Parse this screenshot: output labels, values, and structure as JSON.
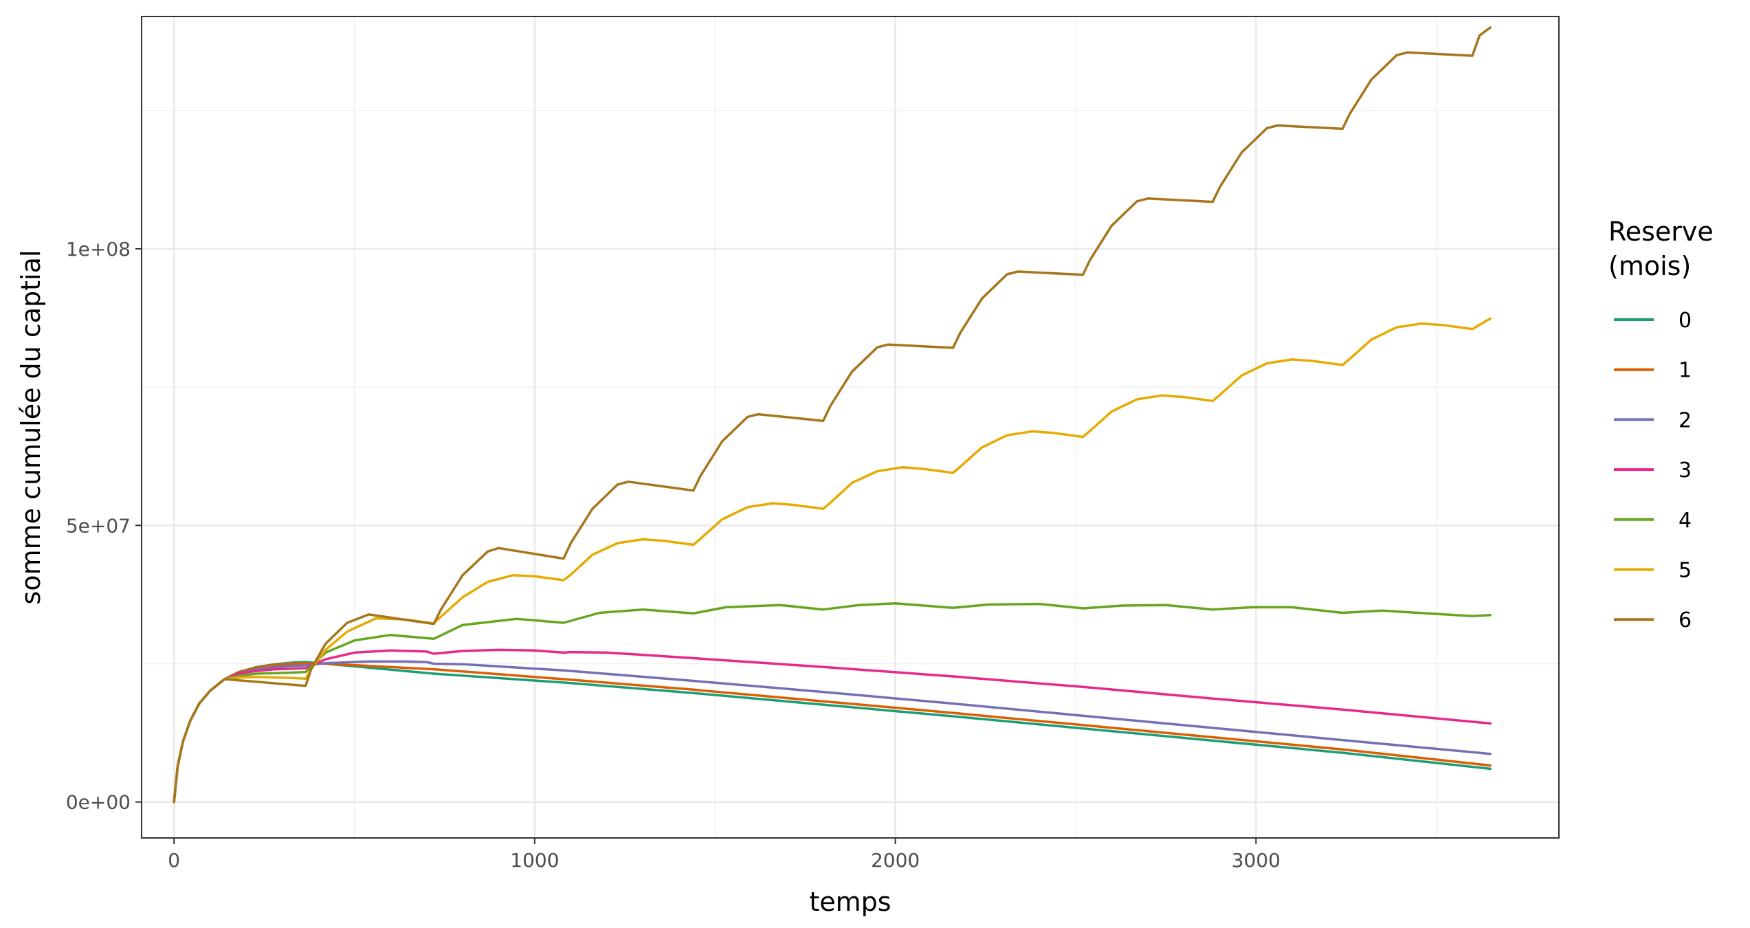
{
  "chart_data": {
    "type": "line",
    "title": "",
    "xlabel": "temps",
    "ylabel": "somme cumulée du captial",
    "xlim": [
      -90,
      3840
    ],
    "ylim": [
      -6500000,
      142000000
    ],
    "x_ticks": [
      0,
      1000,
      2000,
      3000
    ],
    "x_tick_labels": [
      "0",
      "1000",
      "2000",
      "3000"
    ],
    "y_ticks": [
      0,
      50000000,
      100000000
    ],
    "y_tick_labels": [
      "0e+00",
      "5e+07",
      "1e+08"
    ],
    "grid": true,
    "legend": {
      "title_lines": [
        "Reserve",
        "(mois)"
      ],
      "position": "right"
    },
    "series": [
      {
        "name": "0",
        "color": "#1B9E77",
        "x": [
          0,
          10,
          25,
          45,
          70,
          100,
          140,
          180,
          230,
          280,
          330,
          365,
          420,
          720,
          1080,
          1440,
          1800,
          2160,
          2520,
          2880,
          3240,
          3650
        ],
        "values": [
          0,
          6500000,
          11000000,
          14700000,
          17800000,
          20100000,
          22200000,
          23500000,
          24400000,
          24900000,
          25200000,
          25300000,
          25000000,
          23200000,
          21600000,
          19700000,
          17600000,
          15500000,
          13300000,
          11100000,
          8900000,
          6000000
        ]
      },
      {
        "name": "1",
        "color": "#D95F02",
        "x": [
          0,
          10,
          25,
          45,
          70,
          100,
          140,
          180,
          230,
          280,
          330,
          365,
          420,
          720,
          1080,
          1440,
          1800,
          2160,
          2520,
          2880,
          3240,
          3650
        ],
        "values": [
          0,
          6500000,
          11000000,
          14700000,
          17800000,
          20100000,
          22200000,
          23500000,
          24300000,
          24800000,
          25000000,
          25100000,
          25000000,
          24000000,
          22200000,
          20300000,
          18200000,
          16100000,
          13900000,
          11700000,
          9500000,
          6600000
        ]
      },
      {
        "name": "2",
        "color": "#7570B3",
        "x": [
          0,
          10,
          25,
          45,
          70,
          100,
          140,
          180,
          230,
          280,
          330,
          365,
          420,
          540,
          640,
          700,
          720,
          800,
          1080,
          1440,
          1800,
          2160,
          2520,
          2880,
          3240,
          3650
        ],
        "values": [
          0,
          6500000,
          11000000,
          14700000,
          17800000,
          20100000,
          22200000,
          23300000,
          24000000,
          24400000,
          24600000,
          24700000,
          25100000,
          25400000,
          25400000,
          25300000,
          25000000,
          24900000,
          23800000,
          21900000,
          19900000,
          17800000,
          15600000,
          13400000,
          11200000,
          8700000
        ]
      },
      {
        "name": "3",
        "color": "#E7298A",
        "x": [
          0,
          10,
          25,
          45,
          70,
          100,
          140,
          180,
          230,
          280,
          330,
          365,
          420,
          500,
          600,
          700,
          720,
          800,
          900,
          1000,
          1080,
          1100,
          1200,
          1300,
          1440,
          1800,
          2160,
          2520,
          2880,
          3240,
          3650
        ],
        "values": [
          0,
          6500000,
          11000000,
          14700000,
          17800000,
          20100000,
          22200000,
          23200000,
          23700000,
          24000000,
          24100000,
          24200000,
          25800000,
          27000000,
          27400000,
          27200000,
          26800000,
          27300000,
          27500000,
          27400000,
          27000000,
          27100000,
          27000000,
          26600000,
          26000000,
          24400000,
          22700000,
          20800000,
          18700000,
          16700000,
          14200000
        ]
      },
      {
        "name": "4",
        "color": "#66A61E",
        "x": [
          0,
          10,
          25,
          45,
          70,
          100,
          140,
          180,
          230,
          280,
          330,
          365,
          420,
          500,
          600,
          720,
          800,
          950,
          1080,
          1180,
          1300,
          1440,
          1530,
          1680,
          1800,
          1900,
          2000,
          2160,
          2260,
          2400,
          2520,
          2630,
          2750,
          2880,
          2990,
          3100,
          3240,
          3350,
          3600,
          3650
        ],
        "values": [
          0,
          6500000,
          11000000,
          14700000,
          17800000,
          20100000,
          22200000,
          22800000,
          23200000,
          23300000,
          23400000,
          23500000,
          27000000,
          29200000,
          30200000,
          29500000,
          32000000,
          33100000,
          32400000,
          34200000,
          34800000,
          34100000,
          35200000,
          35600000,
          34800000,
          35600000,
          35900000,
          35100000,
          35700000,
          35800000,
          35000000,
          35500000,
          35600000,
          34800000,
          35200000,
          35200000,
          34200000,
          34600000,
          33600000,
          33800000
        ]
      },
      {
        "name": "5",
        "color": "#E6AB02",
        "x": [
          0,
          10,
          25,
          45,
          70,
          100,
          140,
          180,
          230,
          280,
          330,
          365,
          380,
          420,
          480,
          560,
          640,
          720,
          740,
          800,
          870,
          940,
          1000,
          1080,
          1100,
          1160,
          1230,
          1300,
          1360,
          1440,
          1460,
          1520,
          1590,
          1660,
          1720,
          1800,
          1820,
          1880,
          1950,
          2020,
          2080,
          2160,
          2180,
          2240,
          2310,
          2380,
          2440,
          2520,
          2540,
          2600,
          2670,
          2740,
          2800,
          2880,
          2900,
          2960,
          3030,
          3100,
          3160,
          3240,
          3260,
          3320,
          3390,
          3460,
          3520,
          3600,
          3650
        ],
        "values": [
          0,
          6500000,
          11000000,
          14700000,
          17800000,
          20100000,
          22200000,
          22500000,
          22600000,
          22500000,
          22400000,
          22300000,
          24000000,
          27500000,
          30800000,
          33200000,
          33000000,
          32300000,
          33500000,
          37000000,
          39800000,
          41000000,
          40800000,
          40100000,
          41100000,
          44700000,
          46800000,
          47500000,
          47200000,
          46500000,
          47600000,
          51100000,
          53300000,
          54000000,
          53700000,
          53000000,
          54100000,
          57700000,
          59800000,
          60500000,
          60200000,
          59500000,
          60600000,
          64100000,
          66300000,
          67000000,
          66700000,
          66000000,
          67100000,
          70600000,
          72800000,
          73500000,
          73200000,
          72500000,
          73600000,
          77100000,
          79300000,
          80000000,
          79700000,
          79000000,
          80100000,
          83600000,
          85800000,
          86500000,
          86200000,
          85500000,
          87400000
        ]
      },
      {
        "name": "6",
        "color": "#A6761D",
        "x": [
          0,
          10,
          25,
          45,
          70,
          100,
          140,
          180,
          365,
          380,
          420,
          480,
          540,
          720,
          740,
          800,
          870,
          900,
          1080,
          1100,
          1160,
          1230,
          1260,
          1440,
          1460,
          1520,
          1590,
          1620,
          1800,
          1820,
          1880,
          1950,
          1980,
          2160,
          2180,
          2240,
          2310,
          2340,
          2520,
          2540,
          2600,
          2670,
          2700,
          2880,
          2900,
          2960,
          3030,
          3060,
          3240,
          3260,
          3320,
          3390,
          3420,
          3600,
          3620,
          3650
        ],
        "values": [
          0,
          6500000,
          11000000,
          14700000,
          17800000,
          20100000,
          22200000,
          22000000,
          21000000,
          24000000,
          28600000,
          32400000,
          33900000,
          32200000,
          34800000,
          41000000,
          45300000,
          45900000,
          44000000,
          46800000,
          53000000,
          57400000,
          57900000,
          56300000,
          59000000,
          65200000,
          69600000,
          70100000,
          68900000,
          71600000,
          77800000,
          82200000,
          82700000,
          82100000,
          84800000,
          91000000,
          95400000,
          95900000,
          95300000,
          98000000,
          104200000,
          108600000,
          109100000,
          108500000,
          111200000,
          117400000,
          121800000,
          122300000,
          121700000,
          124400000,
          130600000,
          135000000,
          135500000,
          134900000,
          138600000,
          140000000
        ]
      }
    ]
  }
}
